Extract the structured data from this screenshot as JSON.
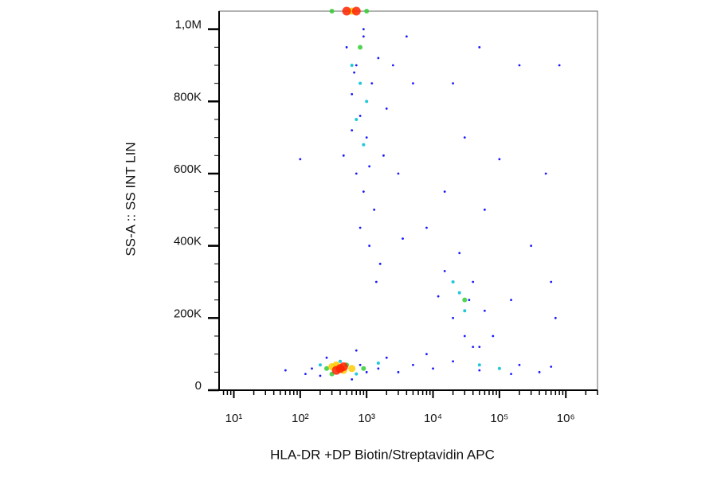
{
  "chart_data": {
    "type": "scatter",
    "x_label": "HLA-DR +DP Biotin/Streptavidin APC",
    "y_label": "SS-A :: SS INT LIN",
    "xscale": "log",
    "xlim": [
      6,
      3000000
    ],
    "ylim": [
      0,
      1050000
    ],
    "xticks": [
      {
        "value": 10,
        "label": "10¹"
      },
      {
        "value": 100,
        "label": "10²"
      },
      {
        "value": 1000,
        "label": "10³"
      },
      {
        "value": 10000,
        "label": "10⁴"
      },
      {
        "value": 100000,
        "label": "10⁵"
      },
      {
        "value": 1000000,
        "label": "10⁶"
      }
    ],
    "xminorticks": [
      7,
      8,
      9,
      20,
      30,
      40,
      50,
      60,
      70,
      80,
      90,
      200,
      300,
      400,
      500,
      600,
      700,
      800,
      900,
      2000,
      3000,
      4000,
      5000,
      6000,
      7000,
      8000,
      9000,
      20000,
      30000,
      40000,
      50000,
      60000,
      70000,
      80000,
      90000,
      200000,
      300000,
      400000,
      500000,
      600000,
      700000,
      800000,
      900000,
      2000000,
      3000000
    ],
    "yticks": [
      0,
      {
        "value": 200000,
        "label": "200K"
      },
      {
        "value": 400000,
        "label": "400K"
      },
      {
        "value": 600000,
        "label": "600K"
      },
      {
        "value": 800000,
        "label": "800K"
      },
      {
        "value": 1000000,
        "label": "1,0M"
      }
    ],
    "yminorticks": [
      50000,
      100000,
      150000,
      250000,
      300000,
      350000,
      450000,
      500000,
      550000,
      650000,
      700000,
      750000,
      850000,
      900000,
      950000
    ],
    "series": [
      {
        "color": "#1a1aff",
        "x": [
          500,
          700,
          900,
          1200,
          600,
          800,
          1000,
          1500,
          450,
          700,
          1100,
          900,
          1300,
          600,
          2000,
          800,
          1100,
          1600,
          1400,
          900,
          650,
          1800,
          2500,
          3000,
          5000,
          3500,
          100,
          4000,
          20000,
          50000,
          200000,
          30000,
          100000,
          500000,
          800000,
          60000,
          8000,
          15000,
          300000,
          600000,
          700000,
          150000,
          40000,
          15000,
          25000,
          40000,
          20000,
          60000,
          30000,
          12000,
          80000,
          50000,
          35000,
          2000,
          5000,
          10000,
          20000,
          50000,
          100000,
          200000,
          400000,
          600000,
          3000,
          8000,
          150000,
          150,
          200,
          250,
          600,
          800,
          1000,
          120,
          60,
          1500,
          700
        ],
        "values": [
          950000,
          900000,
          980000,
          850000,
          820000,
          760000,
          700000,
          920000,
          650000,
          600000,
          620000,
          550000,
          500000,
          720000,
          780000,
          450000,
          400000,
          350000,
          300000,
          1000000,
          880000,
          650000,
          900000,
          600000,
          850000,
          420000,
          640000,
          980000,
          850000,
          950000,
          900000,
          700000,
          640000,
          600000,
          900000,
          500000,
          450000,
          550000,
          400000,
          300000,
          200000,
          250000,
          120000,
          330000,
          380000,
          300000,
          200000,
          220000,
          150000,
          260000,
          150000,
          120000,
          250000,
          90000,
          70000,
          60000,
          80000,
          55000,
          60000,
          70000,
          50000,
          65000,
          50000,
          100000,
          45000,
          60000,
          40000,
          90000,
          30000,
          70000,
          50000,
          45000,
          55000,
          60000,
          110000
        ]
      },
      {
        "color": "#22c8d8",
        "x": [
          600,
          800,
          700,
          900,
          1000,
          25000,
          30000,
          20000,
          400,
          700,
          1500,
          100000,
          50000,
          200
        ],
        "values": [
          900000,
          850000,
          750000,
          680000,
          800000,
          270000,
          220000,
          300000,
          80000,
          45000,
          75000,
          60000,
          70000,
          70000
        ]
      },
      {
        "color": "#33cc33",
        "x": [
          800,
          500,
          300,
          250,
          900,
          30000,
          1000,
          300
        ],
        "values": [
          950000,
          70000,
          45000,
          60000,
          60000,
          250000,
          1050000,
          1050000
        ]
      },
      {
        "color": "#ffcc00",
        "x": [
          350,
          450,
          300,
          600,
          600
        ],
        "values": [
          70000,
          55000,
          65000,
          60000,
          1050000
        ]
      },
      {
        "color": "#ff2200",
        "x": [
          400,
          450,
          350,
          500,
          700
        ],
        "values": [
          60000,
          65000,
          55000,
          1050000,
          1050000
        ]
      }
    ]
  }
}
